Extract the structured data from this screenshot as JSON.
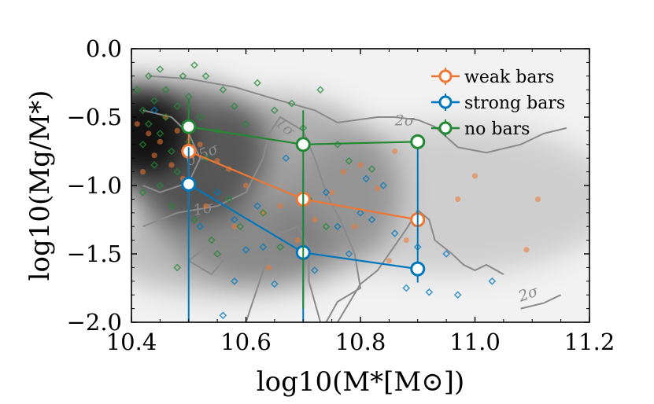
{
  "chart_data": {
    "type": "scatter",
    "title": "",
    "xlabel": "log10(M*[M⊙])",
    "ylabel": "log10(Mg/M*)",
    "xlim": [
      10.4,
      11.2
    ],
    "ylim": [
      -2.0,
      0.0
    ],
    "x_ticks": [
      10.4,
      10.6,
      10.8,
      11.0,
      11.2
    ],
    "x_tick_labels": [
      "10.4",
      "10.6",
      "10.8",
      "11.0",
      "11.2"
    ],
    "y_ticks": [
      0.0,
      -0.5,
      -1.0,
      -1.5,
      -2.0
    ],
    "y_tick_labels": [
      "0.0",
      "−0.5",
      "−1.0",
      "−1.5",
      "−2.0"
    ],
    "legend_position": "top-right",
    "contour_labels": [
      {
        "text": "1σ",
        "x": 10.51,
        "y": -1.22,
        "rotation": -12
      },
      {
        "text": "0.5σ",
        "x": 10.5,
        "y": -0.86,
        "rotation": -25
      },
      {
        "text": "1σ",
        "x": 10.65,
        "y": -0.55,
        "rotation": 42
      },
      {
        "text": "2σ",
        "x": 10.86,
        "y": -0.56,
        "rotation": 0
      },
      {
        "text": "2σ",
        "x": 11.08,
        "y": -1.85,
        "rotation": -20
      }
    ],
    "density_blobs": [
      {
        "x": 10.41,
        "y": -0.6,
        "rx": 0.09,
        "ry": 0.35,
        "opacity": 0.85
      },
      {
        "x": 10.5,
        "y": -0.75,
        "rx": 0.14,
        "ry": 0.5,
        "opacity": 0.5
      },
      {
        "x": 10.65,
        "y": -1.05,
        "rx": 0.22,
        "ry": 0.7,
        "opacity": 0.28
      },
      {
        "x": 10.95,
        "y": -1.1,
        "rx": 0.3,
        "ry": 0.55,
        "opacity": 0.15
      },
      {
        "x": 10.55,
        "y": -1.45,
        "rx": 0.2,
        "ry": 0.35,
        "opacity": 0.22
      }
    ],
    "contours": [
      {
        "level": "0.5σ",
        "points": [
          [
            10.42,
            -0.45
          ],
          [
            10.47,
            -0.5
          ],
          [
            10.5,
            -0.62
          ],
          [
            10.52,
            -0.8
          ],
          [
            10.5,
            -0.98
          ],
          [
            10.45,
            -1.05
          ],
          [
            10.42,
            -1.0
          ]
        ]
      },
      {
        "level": "1σ",
        "points": [
          [
            10.42,
            -1.3
          ],
          [
            10.48,
            -1.2
          ],
          [
            10.55,
            -1.15
          ],
          [
            10.6,
            -1.05
          ],
          [
            10.63,
            -0.8
          ],
          [
            10.64,
            -0.62
          ],
          [
            10.66,
            -0.5
          ],
          [
            10.7,
            -0.6
          ],
          [
            10.72,
            -0.8
          ],
          [
            10.74,
            -1.05
          ],
          [
            10.77,
            -1.3
          ],
          [
            10.79,
            -1.5
          ],
          [
            10.8,
            -1.75
          ],
          [
            10.76,
            -1.85
          ],
          [
            10.74,
            -2.0
          ]
        ]
      },
      {
        "level": "1σ",
        "points": [
          [
            10.6,
            -2.0
          ],
          [
            10.62,
            -1.75
          ],
          [
            10.64,
            -1.5
          ],
          [
            10.66,
            -1.35
          ],
          [
            10.69,
            -1.3
          ],
          [
            10.71,
            -1.45
          ],
          [
            10.71,
            -1.7
          ],
          [
            10.73,
            -2.0
          ]
        ]
      },
      {
        "level": "1σ",
        "points": [
          [
            10.5,
            -1.55
          ],
          [
            10.54,
            -1.65
          ],
          [
            10.56,
            -1.55
          ],
          [
            10.53,
            -1.45
          ],
          [
            10.5,
            -1.55
          ]
        ]
      },
      {
        "level": "2σ",
        "points": [
          [
            10.43,
            -0.2
          ],
          [
            10.5,
            -0.22
          ],
          [
            10.58,
            -0.28
          ],
          [
            10.66,
            -0.38
          ],
          [
            10.72,
            -0.45
          ],
          [
            10.76,
            -0.54
          ],
          [
            10.83,
            -0.5
          ],
          [
            10.86,
            -0.5
          ],
          [
            10.9,
            -0.52
          ],
          [
            10.93,
            -0.57
          ],
          [
            10.97,
            -0.72
          ],
          [
            11.02,
            -0.76
          ],
          [
            11.08,
            -0.7
          ],
          [
            11.12,
            -0.62
          ],
          [
            11.16,
            -0.58
          ]
        ]
      },
      {
        "level": "2σ",
        "points": [
          [
            10.76,
            -2.0
          ],
          [
            10.8,
            -1.72
          ],
          [
            10.83,
            -1.62
          ],
          [
            10.85,
            -1.5
          ],
          [
            10.88,
            -1.32
          ],
          [
            10.9,
            -1.18
          ],
          [
            10.92,
            -1.25
          ],
          [
            10.93,
            -1.4
          ],
          [
            10.96,
            -1.5
          ],
          [
            10.98,
            -1.58
          ],
          [
            11.0,
            -1.62
          ],
          [
            11.02,
            -1.58
          ],
          [
            11.05,
            -1.65
          ]
        ]
      },
      {
        "level": "2σ",
        "points": [
          [
            11.08,
            -1.9
          ],
          [
            11.12,
            -1.86
          ],
          [
            11.15,
            -1.8
          ]
        ]
      }
    ],
    "series": [
      {
        "name": "weak bars",
        "color": "#ee7733",
        "median": [
          {
            "x": 10.5,
            "y": -0.75,
            "err_low": 0.41,
            "err_high": 0.2
          },
          {
            "x": 10.7,
            "y": -1.1,
            "err_low": 0.0,
            "err_high": 0.0
          },
          {
            "x": 10.9,
            "y": -1.25,
            "err_low": 0.0,
            "err_high": 0.0
          }
        ],
        "points": [
          [
            10.43,
            -0.62
          ],
          [
            10.44,
            -0.78
          ],
          [
            10.45,
            -0.68
          ],
          [
            10.46,
            -0.5
          ],
          [
            10.47,
            -0.85
          ],
          [
            10.48,
            -0.6
          ],
          [
            10.49,
            -0.95
          ],
          [
            10.52,
            -0.7
          ],
          [
            10.55,
            -0.82
          ],
          [
            10.41,
            -0.55
          ],
          [
            10.42,
            -0.9
          ],
          [
            10.57,
            -0.88
          ],
          [
            10.6,
            -1.0
          ],
          [
            10.63,
            -1.2
          ],
          [
            10.66,
            -1.15
          ],
          [
            10.69,
            -1.4
          ],
          [
            10.72,
            -1.25
          ],
          [
            10.75,
            -1.05
          ],
          [
            10.77,
            -0.9
          ],
          [
            10.79,
            -1.3
          ],
          [
            10.8,
            -0.85
          ],
          [
            10.83,
            -1.02
          ],
          [
            10.86,
            -0.75
          ],
          [
            10.85,
            -1.55
          ],
          [
            10.88,
            -1.4
          ],
          [
            10.97,
            -1.1
          ],
          [
            11.0,
            -0.93
          ],
          [
            11.09,
            -1.47
          ],
          [
            11.11,
            -1.1
          ],
          [
            10.64,
            -1.6
          ],
          [
            10.53,
            -1.15
          ],
          [
            10.58,
            -1.3
          ]
        ]
      },
      {
        "name": "strong bars",
        "color": "#0077bb",
        "median": [
          {
            "x": 10.5,
            "y": -0.99,
            "err_low": 1.01,
            "err_high": 0.27
          },
          {
            "x": 10.7,
            "y": -1.49,
            "err_low": 0.51,
            "err_high": 0.6
          },
          {
            "x": 10.9,
            "y": -1.61,
            "err_low": 0.1,
            "err_high": 0.93
          }
        ],
        "points": [
          [
            10.44,
            -0.45
          ],
          [
            10.5,
            -0.58
          ],
          [
            10.52,
            -1.3
          ],
          [
            10.55,
            -1.05
          ],
          [
            10.58,
            -1.25
          ],
          [
            10.6,
            -1.47
          ],
          [
            10.62,
            -1.15
          ],
          [
            10.65,
            -1.72
          ],
          [
            10.67,
            -0.8
          ],
          [
            10.7,
            -0.68
          ],
          [
            10.72,
            -1.62
          ],
          [
            10.74,
            -1.05
          ],
          [
            10.76,
            -1.3
          ],
          [
            10.78,
            -1.5
          ],
          [
            10.8,
            -1.2
          ],
          [
            10.81,
            -0.95
          ],
          [
            10.82,
            -1.25
          ],
          [
            10.84,
            -1.0
          ],
          [
            10.86,
            -1.35
          ],
          [
            10.88,
            -1.75
          ],
          [
            10.9,
            -1.45
          ],
          [
            10.92,
            -1.78
          ],
          [
            10.95,
            -1.5
          ],
          [
            10.97,
            -1.8
          ],
          [
            11.03,
            -1.7
          ],
          [
            10.56,
            -1.95
          ],
          [
            10.63,
            -1.45
          ],
          [
            10.58,
            -1.7
          ]
        ]
      },
      {
        "name": "no bars",
        "color": "#228833",
        "median": [
          {
            "x": 10.5,
            "y": -0.57,
            "err_low": 0.0,
            "err_high": 0.2
          },
          {
            "x": 10.7,
            "y": -0.7,
            "err_low": 1.2,
            "err_high": 0.25
          },
          {
            "x": 10.9,
            "y": -0.68,
            "err_low": 0.0,
            "err_high": 0.0
          }
        ],
        "points": [
          [
            10.41,
            -0.3
          ],
          [
            10.42,
            -0.45
          ],
          [
            10.42,
            -0.7
          ],
          [
            10.43,
            -0.2
          ],
          [
            10.43,
            -0.55
          ],
          [
            10.44,
            -0.38
          ],
          [
            10.44,
            -0.85
          ],
          [
            10.45,
            -0.62
          ],
          [
            10.45,
            -1.0
          ],
          [
            10.46,
            -0.3
          ],
          [
            10.46,
            -0.5
          ],
          [
            10.47,
            -0.75
          ],
          [
            10.47,
            -1.15
          ],
          [
            10.48,
            -0.42
          ],
          [
            10.48,
            -0.9
          ],
          [
            10.49,
            -0.2
          ],
          [
            10.5,
            -0.35
          ],
          [
            10.5,
            -0.68
          ],
          [
            10.51,
            -1.25
          ],
          [
            10.52,
            -0.5
          ],
          [
            10.53,
            -0.2
          ],
          [
            10.53,
            -0.8
          ],
          [
            10.54,
            -1.4
          ],
          [
            10.55,
            -0.6
          ],
          [
            10.56,
            -0.3
          ],
          [
            10.57,
            -1.1
          ],
          [
            10.58,
            -0.42
          ],
          [
            10.59,
            -1.3
          ],
          [
            10.6,
            -0.55
          ],
          [
            10.62,
            -0.25
          ],
          [
            10.63,
            -1.2
          ],
          [
            10.65,
            -0.45
          ],
          [
            10.66,
            -1.45
          ],
          [
            10.68,
            -0.4
          ],
          [
            10.7,
            -0.58
          ],
          [
            10.71,
            -1.1
          ],
          [
            10.73,
            -0.3
          ],
          [
            10.74,
            -1.3
          ],
          [
            10.76,
            -0.7
          ],
          [
            10.78,
            -0.82
          ],
          [
            10.82,
            -0.88
          ],
          [
            10.48,
            -1.6
          ],
          [
            10.42,
            -1.05
          ],
          [
            10.55,
            -1.5
          ],
          [
            10.45,
            -0.15
          ],
          [
            10.51,
            -0.12
          ]
        ]
      }
    ]
  }
}
